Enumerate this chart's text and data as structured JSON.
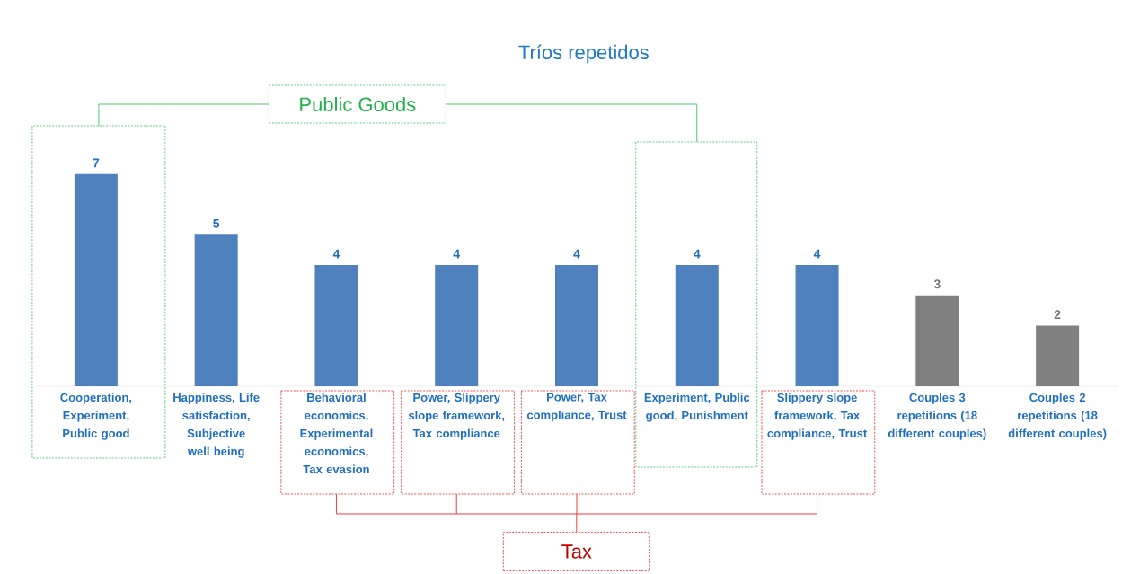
{
  "chart_data": {
    "type": "bar",
    "title": "Tríos repetidos",
    "categories": [
      "Cooperation, Experiment, Public good",
      "Happiness, Life satisfaction, Subjective well being",
      "Behavioral economics, Experimental economics, Tax evasion",
      "Power, Slippery slope framework, Tax compliance",
      "Power, Tax compliance, Trust",
      "Experiment, Public good, Punishment",
      "Slippery slope framework, Tax compliance, Trust",
      "Couples 3 repetitions (18 different couples)",
      "Couples 2 repetitions (18 different couples)"
    ],
    "values": [
      7,
      5,
      4,
      4,
      4,
      4,
      4,
      3,
      2
    ],
    "colors": [
      "#4f81bd",
      "#4f81bd",
      "#4f81bd",
      "#4f81bd",
      "#4f81bd",
      "#4f81bd",
      "#4f81bd",
      "#808080",
      "#808080"
    ],
    "data_labels": true,
    "annotations": [
      "Public Goods",
      "Tax"
    ]
  }
}
